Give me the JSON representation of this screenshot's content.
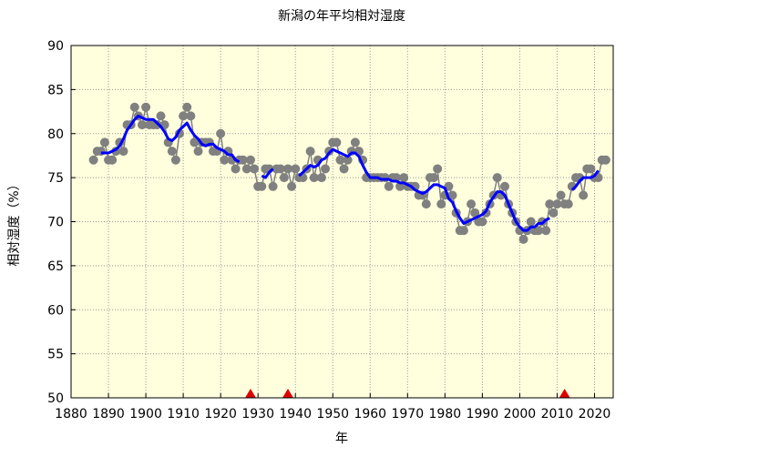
{
  "chart_data": {
    "type": "line",
    "title": "新潟の年平均相対湿度",
    "x_label": "年",
    "y_label": "相対湿度（%）",
    "xlim": [
      1880,
      2025
    ],
    "ylim": [
      50,
      90
    ],
    "xticks": [
      1880,
      1890,
      1900,
      1910,
      1920,
      1930,
      1940,
      1950,
      1960,
      1970,
      1980,
      1990,
      2000,
      2010,
      2020
    ],
    "yticks": [
      50,
      55,
      60,
      65,
      70,
      75,
      80,
      85,
      90
    ],
    "grid": true,
    "background": "#ffffdd",
    "x": [
      1886,
      1887,
      1888,
      1889,
      1890,
      1891,
      1892,
      1893,
      1894,
      1895,
      1896,
      1897,
      1898,
      1899,
      1900,
      1901,
      1902,
      1903,
      1904,
      1905,
      1906,
      1907,
      1908,
      1909,
      1910,
      1911,
      1912,
      1913,
      1914,
      1915,
      1916,
      1917,
      1918,
      1919,
      1920,
      1921,
      1922,
      1923,
      1924,
      1925,
      1926,
      1927,
      1928,
      1929,
      1930,
      1931,
      1932,
      1933,
      1934,
      1935,
      1936,
      1937,
      1938,
      1939,
      1940,
      1941,
      1942,
      1943,
      1944,
      1945,
      1946,
      1947,
      1948,
      1949,
      1950,
      1951,
      1952,
      1953,
      1954,
      1955,
      1956,
      1957,
      1958,
      1959,
      1960,
      1961,
      1962,
      1963,
      1964,
      1965,
      1966,
      1967,
      1968,
      1969,
      1970,
      1971,
      1972,
      1973,
      1974,
      1975,
      1976,
      1977,
      1978,
      1979,
      1980,
      1981,
      1982,
      1983,
      1984,
      1985,
      1986,
      1987,
      1988,
      1989,
      1990,
      1991,
      1992,
      1993,
      1994,
      1995,
      1996,
      1997,
      1998,
      1999,
      2000,
      2001,
      2002,
      2003,
      2004,
      2005,
      2006,
      2007,
      2008,
      2009,
      2010,
      2011,
      2012,
      2013,
      2014,
      2015,
      2016,
      2017,
      2018,
      2019,
      2020,
      2021,
      2022,
      2023
    ],
    "series": [
      {
        "color": "#808080",
        "markers": true,
        "values": [
          77,
          78,
          78,
          79,
          77,
          77,
          78,
          79,
          78,
          81,
          81,
          83,
          82,
          81,
          83,
          81,
          81,
          81,
          82,
          81,
          79,
          78,
          77,
          80,
          82,
          83,
          82,
          79,
          78,
          79,
          79,
          79,
          78,
          78,
          80,
          77,
          78,
          77,
          76,
          77,
          77,
          76,
          77,
          76,
          74,
          74,
          76,
          76,
          74,
          76,
          76,
          75,
          76,
          74,
          76,
          75,
          75,
          76,
          78,
          75,
          77,
          75,
          76,
          78,
          79,
          79,
          77,
          76,
          77,
          78,
          79,
          78,
          77,
          75,
          75,
          75,
          75,
          75,
          75,
          74,
          75,
          75,
          74,
          75,
          74,
          74,
          74,
          73,
          73,
          72,
          75,
          75,
          76,
          72,
          73,
          74,
          73,
          71,
          69,
          69,
          70,
          72,
          71,
          70,
          70,
          71,
          72,
          73,
          75,
          73,
          74,
          72,
          71,
          70,
          69,
          68,
          69,
          70,
          69,
          69,
          70,
          69,
          72,
          71,
          72,
          73,
          72,
          72,
          74,
          75,
          75,
          73,
          76,
          76,
          75,
          75,
          77,
          77
        ]
      },
      {
        "color": "#0000ff",
        "markers": false,
        "values": [
          null,
          null,
          77.8,
          77.8,
          77.8,
          78.0,
          78.2,
          78.6,
          79.4,
          80.4,
          81.0,
          81.6,
          82.0,
          81.8,
          81.6,
          81.6,
          81.6,
          81.2,
          80.8,
          80.2,
          79.4,
          79.2,
          79.6,
          80.4,
          80.8,
          81.2,
          80.4,
          79.8,
          79.4,
          78.8,
          78.6,
          78.8,
          78.8,
          78.4,
          78.2,
          78.0,
          77.6,
          77.6,
          77.0,
          76.8,
          null,
          null,
          null,
          null,
          null,
          75.2,
          75.0,
          75.6,
          76.0,
          null,
          null,
          null,
          null,
          null,
          null,
          75.2,
          75.6,
          76.0,
          76.4,
          76.2,
          76.4,
          77.0,
          77.2,
          77.8,
          78.2,
          78.0,
          77.8,
          77.6,
          77.4,
          77.8,
          77.8,
          77.4,
          76.4,
          75.6,
          75.0,
          75.0,
          75.0,
          74.8,
          74.8,
          74.8,
          74.6,
          74.6,
          74.4,
          74.4,
          74.2,
          74.0,
          73.6,
          73.4,
          73.2,
          73.4,
          73.8,
          74.2,
          74.2,
          74.0,
          73.8,
          72.6,
          72.2,
          71.2,
          70.4,
          69.8,
          70.0,
          70.2,
          70.4,
          70.6,
          70.8,
          71.2,
          72.2,
          72.8,
          73.4,
          73.4,
          73.0,
          72.0,
          71.0,
          70.0,
          69.4,
          69.0,
          69.0,
          69.4,
          69.4,
          69.8,
          69.8,
          70.2,
          70.4,
          null,
          null,
          null,
          null,
          null,
          73.6,
          74.0,
          74.6,
          75.0,
          75.0,
          75.0,
          75.2,
          75.8,
          null,
          null
        ]
      }
    ],
    "change_markers": {
      "x": [
        1928,
        1938,
        2012
      ],
      "color": "#dd0000"
    }
  }
}
